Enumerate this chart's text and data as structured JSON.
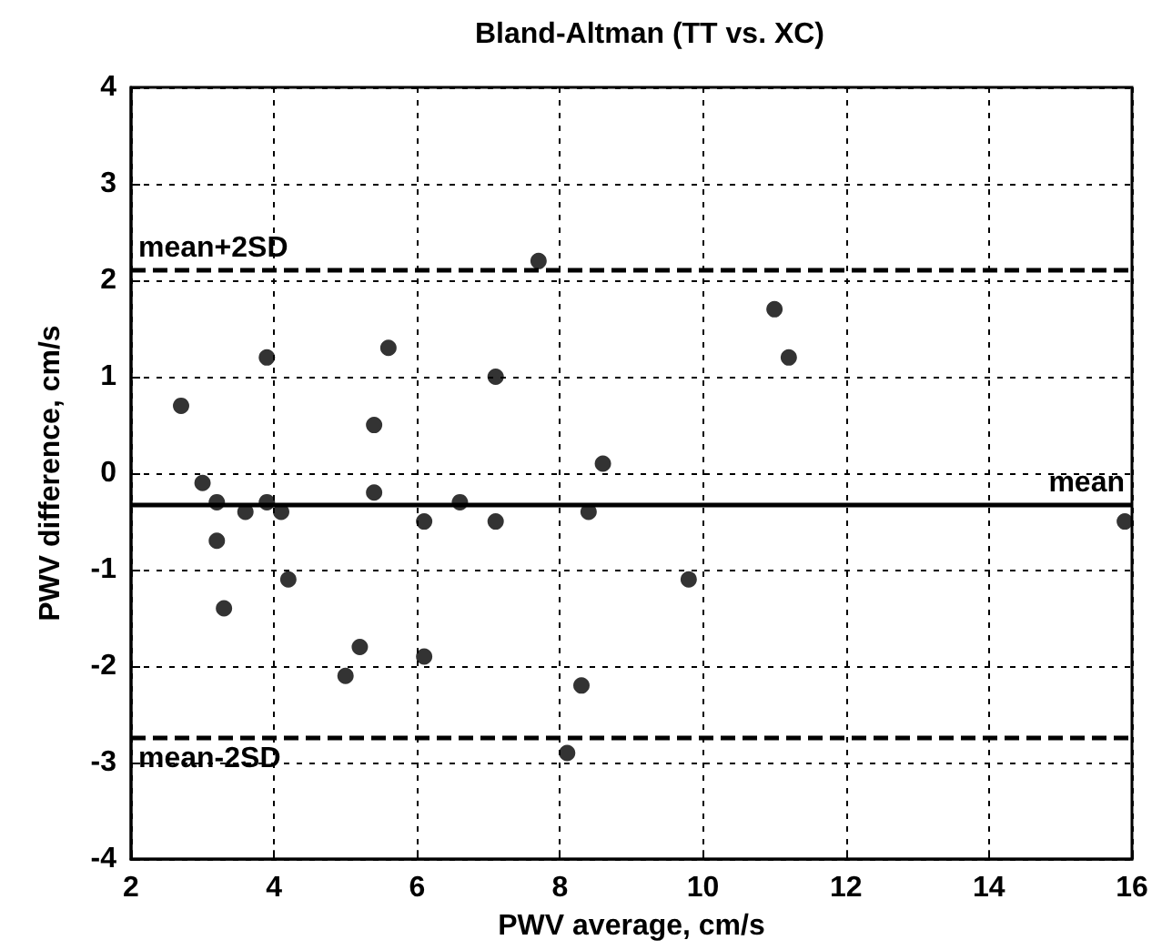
{
  "chart_data": {
    "type": "scatter",
    "title": "Bland-Altman (TT vs. XC)",
    "xlabel": "PWV average, cm/s",
    "ylabel": "PWV difference, cm/s",
    "xlim": [
      2,
      16
    ],
    "xticks": [
      2,
      4,
      6,
      8,
      10,
      12,
      14,
      16
    ],
    "ylim": [
      -4,
      4
    ],
    "yticks": [
      -4,
      -3,
      -2,
      -1,
      0,
      1,
      2,
      3,
      4
    ],
    "grid": true,
    "marker": "circle",
    "series": [
      {
        "color": "#000000",
        "x": [
          2.7,
          3.0,
          3.2,
          3.2,
          3.3,
          3.6,
          3.9,
          3.9,
          4.1,
          4.2,
          5.0,
          5.2,
          5.4,
          5.4,
          5.6,
          6.1,
          6.1,
          6.6,
          7.1,
          7.1,
          7.7,
          8.1,
          8.3,
          8.4,
          8.6,
          9.8,
          11.0,
          11.2,
          15.9
        ],
        "values": [
          0.7,
          -0.1,
          -0.3,
          -0.7,
          -1.4,
          -0.4,
          1.2,
          -0.3,
          -0.4,
          -1.1,
          -2.1,
          -1.8,
          0.5,
          -0.2,
          1.3,
          -0.5,
          -1.9,
          -0.3,
          1.0,
          -0.5,
          2.2,
          -2.9,
          -2.2,
          -0.4,
          0.1,
          -1.1,
          1.7,
          1.2,
          -0.5
        ]
      }
    ],
    "ref_lines": [
      {
        "axis": "y",
        "value": 2.1,
        "label": "mean+2SD",
        "color": "#000000",
        "line_style": "dashed"
      },
      {
        "axis": "y",
        "value": -0.33,
        "label": "mean",
        "color": "#000000",
        "line_style": "solid"
      },
      {
        "axis": "y",
        "value": -2.73,
        "label": "mean-2SD",
        "color": "#000000",
        "line_style": "dashed"
      }
    ]
  }
}
